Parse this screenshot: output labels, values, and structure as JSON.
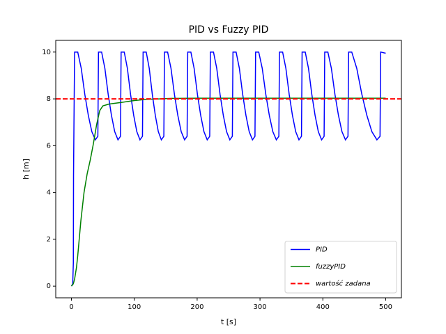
{
  "chart_data": {
    "type": "line",
    "title": "PID vs Fuzzy PID",
    "xlabel": "t [s]",
    "ylabel": "h [m]",
    "xlim": [
      -25,
      525
    ],
    "ylim": [
      -0.5,
      10.5
    ],
    "xticks": [
      0,
      100,
      200,
      300,
      400,
      500
    ],
    "yticks": [
      0,
      2,
      4,
      6,
      8,
      10
    ],
    "legend": "lower right",
    "grid": false,
    "series": [
      {
        "name": "PID",
        "color": "#0000ff",
        "x": [
          0,
          2,
          3,
          3.3,
          4,
          5,
          10,
          15.6,
          21.2,
          26.8,
          32.4,
          38,
          42,
          43,
          48,
          53.2,
          58.4,
          63.6,
          68.8,
          74,
          78,
          79,
          84,
          89,
          94,
          99,
          104,
          109,
          113,
          114,
          119,
          123.8,
          128.6,
          133.4,
          138.2,
          143,
          147,
          148,
          153,
          158.4,
          163.8,
          169.2,
          174.6,
          180,
          184,
          185,
          190,
          195.2,
          200.4,
          205.6,
          210.8,
          216,
          220,
          221,
          226,
          231.2,
          236.4,
          241.6,
          246.8,
          252,
          256,
          257,
          262,
          267.2,
          272.4,
          277.6,
          282.8,
          288,
          292,
          293,
          298,
          303.6,
          309.2,
          314.8,
          320.4,
          326,
          330,
          331,
          336,
          341.2,
          346.4,
          351.6,
          356.8,
          362,
          366,
          367,
          372,
          377.2,
          382.4,
          387.6,
          392.8,
          398,
          402,
          403,
          408,
          413.6,
          419.2,
          424.8,
          430.4,
          436,
          440,
          441,
          446,
          454,
          462,
          470,
          478,
          486,
          491,
          492,
          500
        ],
        "values": [
          0,
          0.1,
          1,
          4.7,
          7,
          10,
          10,
          9.3,
          8.2,
          7.3,
          6.6,
          6.25,
          6.4,
          10,
          10,
          9.3,
          8.2,
          7.3,
          6.6,
          6.25,
          6.4,
          10,
          10,
          9.3,
          8.2,
          7.3,
          6.6,
          6.25,
          6.4,
          10,
          10,
          9.3,
          8.2,
          7.3,
          6.6,
          6.25,
          6.4,
          10,
          10,
          9.3,
          8.2,
          7.3,
          6.6,
          6.25,
          6.4,
          10,
          10,
          9.3,
          8.2,
          7.3,
          6.6,
          6.25,
          6.4,
          10,
          10,
          9.3,
          8.2,
          7.3,
          6.6,
          6.25,
          6.4,
          10,
          10,
          9.3,
          8.2,
          7.3,
          6.6,
          6.25,
          6.4,
          10,
          10,
          9.3,
          8.2,
          7.3,
          6.6,
          6.25,
          6.4,
          10,
          10,
          9.3,
          8.2,
          7.3,
          6.6,
          6.25,
          6.4,
          10,
          10,
          9.3,
          8.2,
          7.3,
          6.6,
          6.25,
          6.4,
          10,
          10,
          9.3,
          8.2,
          7.3,
          6.6,
          6.25,
          6.4,
          10,
          10,
          9.3,
          8.2,
          7.3,
          6.6,
          6.25,
          6.4,
          10,
          9.95
        ]
      },
      {
        "name": "fuzzyPID",
        "color": "#008000",
        "x": [
          0,
          3,
          5,
          8,
          10,
          15,
          20,
          25,
          30,
          35,
          40,
          45,
          50,
          60,
          80,
          100,
          120,
          140,
          160,
          200,
          300,
          400,
          500
        ],
        "values": [
          0,
          0.1,
          0.3,
          0.8,
          1.3,
          2.8,
          4,
          4.8,
          5.4,
          6.1,
          6.9,
          7.5,
          7.7,
          7.78,
          7.85,
          7.93,
          7.98,
          8.0,
          8.02,
          8.03,
          8.03,
          8.03,
          8.03
        ]
      }
    ],
    "reference_line": {
      "name": "wartość zadana",
      "value": 8,
      "color": "#ff0000",
      "dashed": true
    }
  }
}
